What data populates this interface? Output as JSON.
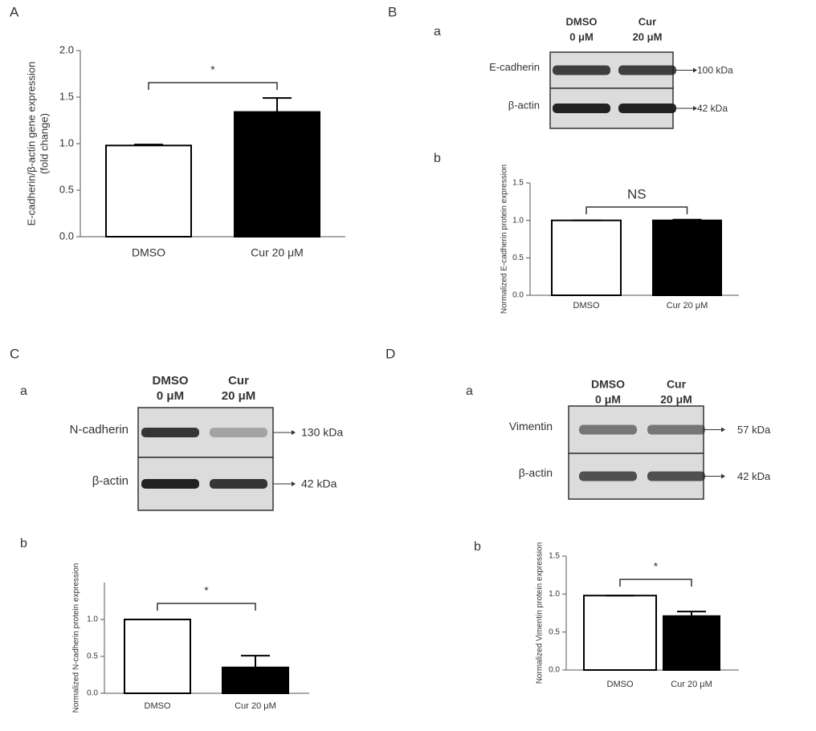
{
  "panel_labels": [
    "A",
    "B",
    "C",
    "D"
  ],
  "blots": [
    {
      "sub_label": "a",
      "lanes": [
        [
          "DMSO",
          "0 μM"
        ],
        [
          "Cur",
          "20 μM"
        ]
      ],
      "rows": [
        {
          "protein": "E-cadherin",
          "size": "100 kDa"
        },
        {
          "protein": "β-actin",
          "size": "42 kDa"
        }
      ]
    },
    {
      "sub_label": "a",
      "lanes": [
        [
          "DMSO",
          "0 μM"
        ],
        [
          "Cur",
          "20 μM"
        ]
      ],
      "rows": [
        {
          "protein": "N-cadherin",
          "size": "130 kDa"
        },
        {
          "protein": "β-actin",
          "size": "42 kDa"
        }
      ]
    },
    {
      "sub_label": "a",
      "lanes": [
        [
          "DMSO",
          "0 μM"
        ],
        [
          "Cur",
          "20 μM"
        ]
      ],
      "rows": [
        {
          "protein": "Vimentin",
          "size": "57 kDa"
        },
        {
          "protein": "β-actin",
          "size": "42 kDa"
        }
      ]
    }
  ],
  "chart_data": [
    {
      "type": "bar",
      "ylabel": [
        "E-cadherin/β-actin gene expression",
        "(fold change)"
      ],
      "categories": [
        "DMSO",
        "Cur 20 μM"
      ],
      "values": [
        0.98,
        1.34
      ],
      "errors": [
        0.01,
        0.15
      ],
      "colors": [
        "#ffffff",
        "#000000"
      ],
      "annotation": "*",
      "ylim": [
        0,
        2.0
      ],
      "yticks": [
        {
          "value": 0,
          "label": "0.0"
        },
        {
          "value": 0.5,
          "label": "0.5"
        },
        {
          "value": 1.0,
          "label": "1.0"
        },
        {
          "value": 1.5,
          "label": "1.5"
        },
        {
          "value": 2.0,
          "label": "2.0"
        }
      ]
    },
    {
      "type": "bar",
      "sub_label": "b",
      "ylabel": [
        "Normalized E-cadherin protein expression"
      ],
      "categories": [
        "DMSO",
        "Cur 20 μM"
      ],
      "values": [
        1.0,
        1.0
      ],
      "errors": [
        0,
        0.01
      ],
      "colors": [
        "#ffffff",
        "#000000"
      ],
      "annotation": "NS",
      "ylim": [
        0,
        1.5
      ],
      "yticks": [
        {
          "value": 0,
          "label": "0.0"
        },
        {
          "value": 0.5,
          "label": "0.5"
        },
        {
          "value": 1.0,
          "label": "1.0"
        },
        {
          "value": 1.5,
          "label": "1.5"
        }
      ]
    },
    {
      "type": "bar",
      "sub_label": "b",
      "ylabel": [
        "Normalized N-cadherin protein expression"
      ],
      "categories": [
        "DMSO",
        "Cur 20 μM"
      ],
      "values": [
        1.0,
        0.35
      ],
      "errors": [
        0,
        0.16
      ],
      "colors": [
        "#ffffff",
        "#000000"
      ],
      "annotation": "*",
      "ylim": [
        0,
        1.5
      ],
      "yticks": [
        {
          "value": 0,
          "label": "0.0"
        },
        {
          "value": 0.5,
          "label": "0.5"
        },
        {
          "value": 1.0,
          "label": "1.0"
        }
      ]
    },
    {
      "type": "bar",
      "sub_label": "b",
      "ylabel": [
        "Normalized Vimentin protein expression"
      ],
      "categories": [
        "DMSO",
        "Cur 20 μM"
      ],
      "values": [
        0.98,
        0.71
      ],
      "errors": [
        0,
        0.06
      ],
      "colors": [
        "#ffffff",
        "#000000"
      ],
      "annotation": "*",
      "ylim": [
        0,
        1.5
      ],
      "yticks": [
        {
          "value": 0,
          "label": "0.0"
        },
        {
          "value": 0.5,
          "label": "0.5"
        },
        {
          "value": 1.0,
          "label": "1.0"
        },
        {
          "value": 1.5,
          "label": "1.5"
        }
      ]
    }
  ]
}
